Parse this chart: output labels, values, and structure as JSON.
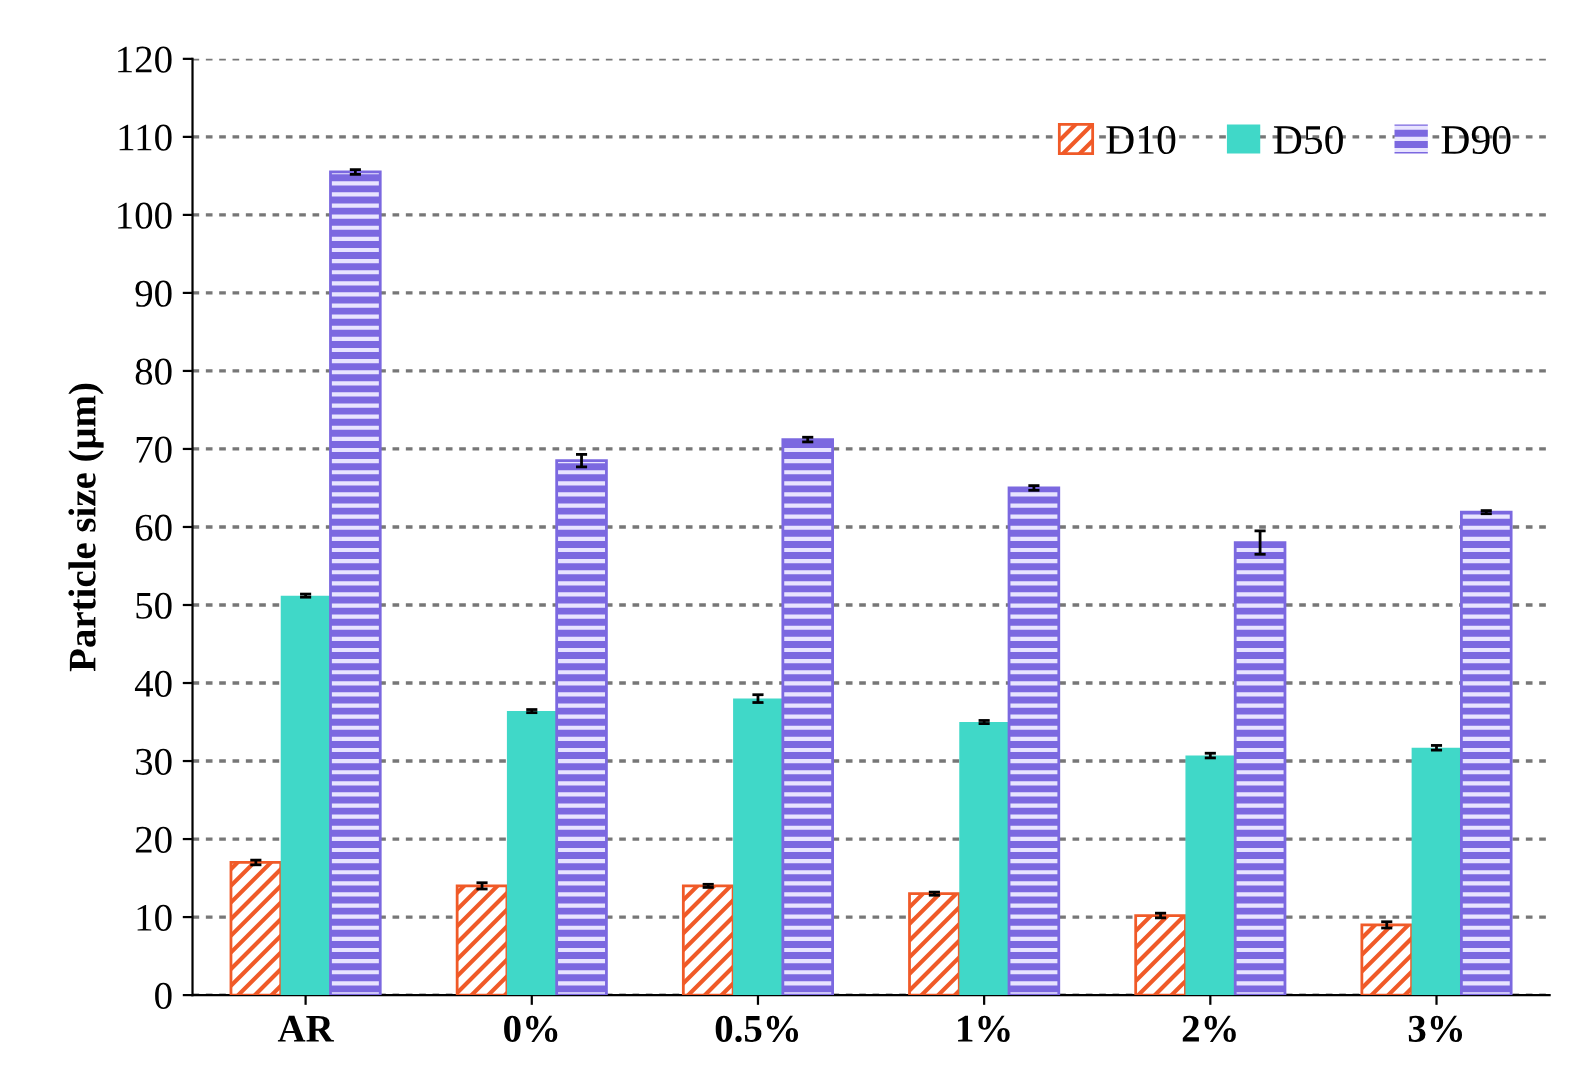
{
  "chart_data": {
    "type": "bar",
    "ylabel": "Particle size (μm)",
    "categories": [
      "AR",
      "0%",
      "0.5%",
      "1%",
      "2%",
      "3%"
    ],
    "series": [
      {
        "name": "D10",
        "color": "#f05a28",
        "values": [
          17,
          14,
          14,
          13,
          10.2,
          9
        ],
        "errors": [
          0.3,
          0.4,
          0.2,
          0.2,
          0.3,
          0.4
        ]
      },
      {
        "name": "D50",
        "color": "#40d8c8",
        "values": [
          51.2,
          36.4,
          38,
          35,
          30.7,
          31.7
        ],
        "errors": [
          0.2,
          0.2,
          0.5,
          0.2,
          0.3,
          0.3
        ]
      },
      {
        "name": "D90",
        "color": "#7b68e0",
        "values": [
          105.5,
          68.5,
          71.2,
          65,
          58,
          61.9
        ],
        "errors": [
          0.3,
          0.8,
          0.3,
          0.3,
          1.5,
          0.2
        ]
      }
    ],
    "ylim": [
      0,
      120
    ],
    "yticks": [
      0,
      10,
      20,
      30,
      40,
      50,
      60,
      70,
      80,
      90,
      100,
      110,
      120
    ],
    "grid": "y",
    "legend": "top right"
  }
}
